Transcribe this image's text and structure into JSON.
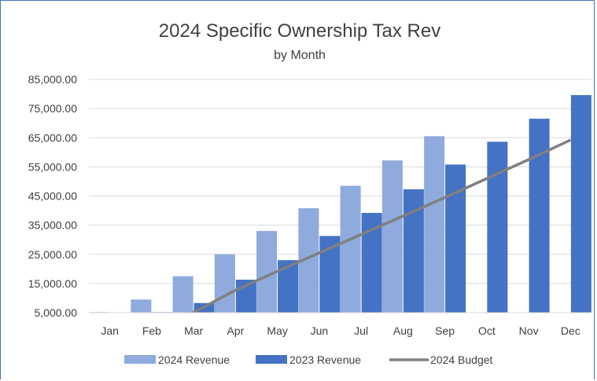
{
  "chart_data": {
    "type": "bar",
    "title": "2024 Specific Ownership Tax Rev",
    "subtitle": "by Month",
    "categories": [
      "Jan",
      "Feb",
      "Mar",
      "Apr",
      "May",
      "Jun",
      "Jul",
      "Aug",
      "Sep",
      "Oct",
      "Nov",
      "Dec"
    ],
    "series": [
      {
        "name": "2024 Revenue",
        "type": "bar",
        "color": "#8FAADC",
        "values": [
          5200,
          9500,
          17500,
          25000,
          33000,
          40800,
          48500,
          57200,
          65500,
          null,
          null,
          null
        ]
      },
      {
        "name": "2023 Revenue",
        "type": "bar",
        "color": "#4472C4",
        "values": [
          5100,
          5200,
          8300,
          16300,
          23000,
          31300,
          39200,
          47300,
          55800,
          63600,
          71500,
          79600
        ]
      },
      {
        "name": "2024 Budget",
        "type": "line",
        "color": "#808080",
        "values": [
          -2000,
          0,
          5100,
          12700,
          19200,
          25500,
          31800,
          38100,
          44500,
          51000,
          57500,
          64200
        ]
      }
    ],
    "ylim": [
      5000,
      85000
    ],
    "yticks": [
      "85,000.00",
      "75,000.00",
      "65,000.00",
      "55,000.00",
      "45,000.00",
      "35,000.00",
      "25,000.00",
      "15,000.00",
      "5,000.00"
    ],
    "ytick_values": [
      85000,
      75000,
      65000,
      55000,
      45000,
      35000,
      25000,
      15000,
      5000
    ],
    "grid": true,
    "legend_position": "bottom"
  }
}
